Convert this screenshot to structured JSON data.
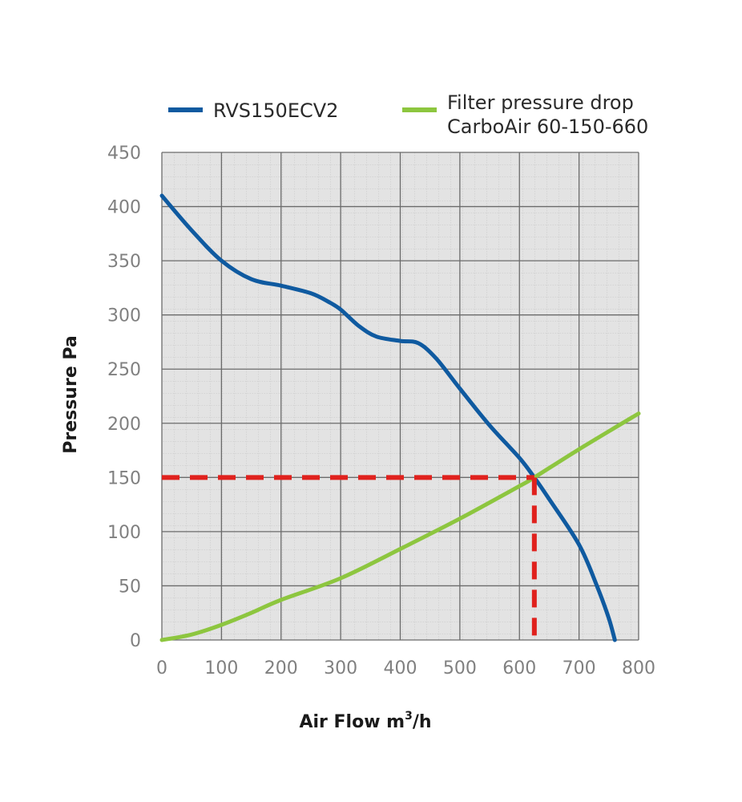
{
  "chart_data": {
    "type": "line",
    "xlabel": "Air Flow m",
    "xlabel_sup": "3",
    "xlabel_suffix": "/h",
    "ylabel": "Pressure Pa",
    "xlim": [
      0,
      800
    ],
    "ylim": [
      0,
      450
    ],
    "x_ticks": [
      "0",
      "100",
      "200",
      "300",
      "400",
      "500",
      "600",
      "700",
      "800"
    ],
    "y_ticks": [
      "0",
      "50",
      "100",
      "150",
      "200",
      "250",
      "300",
      "350",
      "400",
      "450"
    ],
    "grid": true,
    "legend_position": "top",
    "series": [
      {
        "name": "RVS150ECV2",
        "color": "#0f5aa0",
        "points": [
          [
            0,
            410
          ],
          [
            50,
            378
          ],
          [
            100,
            350
          ],
          [
            150,
            333
          ],
          [
            200,
            327
          ],
          [
            250,
            320
          ],
          [
            280,
            312
          ],
          [
            300,
            305
          ],
          [
            330,
            290
          ],
          [
            360,
            280
          ],
          [
            400,
            276
          ],
          [
            430,
            274
          ],
          [
            460,
            260
          ],
          [
            500,
            232
          ],
          [
            550,
            198
          ],
          [
            600,
            168
          ],
          [
            625,
            150
          ],
          [
            650,
            130
          ],
          [
            700,
            88
          ],
          [
            730,
            50
          ],
          [
            750,
            20
          ],
          [
            760,
            0
          ]
        ]
      },
      {
        "name": "Filter pressure drop",
        "name_line2": "CarboAir 60-150-660",
        "color": "#8dc63f",
        "points": [
          [
            0,
            0
          ],
          [
            50,
            5
          ],
          [
            100,
            14
          ],
          [
            150,
            25
          ],
          [
            200,
            37
          ],
          [
            300,
            57
          ],
          [
            400,
            84
          ],
          [
            500,
            112
          ],
          [
            600,
            142
          ],
          [
            625,
            150
          ],
          [
            700,
            176
          ],
          [
            800,
            209
          ]
        ]
      }
    ],
    "annotations": [
      {
        "type": "dashed-line",
        "color": "#e0211d",
        "from": [
          0,
          150
        ],
        "to": [
          625,
          150
        ]
      },
      {
        "type": "dashed-line",
        "color": "#e0211d",
        "from": [
          625,
          150
        ],
        "to": [
          625,
          0
        ]
      }
    ]
  }
}
